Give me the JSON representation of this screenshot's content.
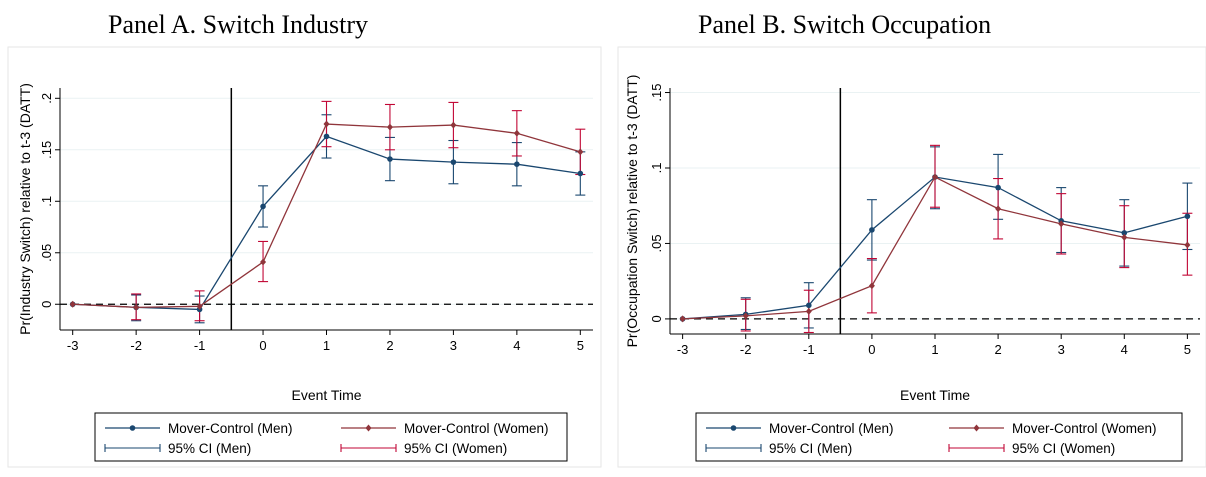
{
  "colors": {
    "men": "#1a476f",
    "women": "#90353b",
    "ci_men": "#1a476f",
    "ci_women": "#c10534",
    "grid": "#eaf2f3",
    "refline": "#000000"
  },
  "chart_data": [
    {
      "type": "line",
      "title": "Panel A. Switch Industry",
      "xlabel": "Event Time",
      "ylabel": "Pr(Industry Switch) relative to t-3 (DATT)",
      "x": [
        -3,
        -2,
        -1,
        0,
        1,
        2,
        3,
        4,
        5
      ],
      "xticks": [
        "-3",
        "-2",
        "-1",
        "0",
        "1",
        "2",
        "3",
        "4",
        "5"
      ],
      "yticks": [
        0,
        0.05,
        0.1,
        0.15,
        0.2
      ],
      "ytick_labels": [
        "0",
        ".05",
        ".1",
        ".15",
        ".2"
      ],
      "xlim": [
        -3.2,
        5.2
      ],
      "ylim": [
        -0.025,
        0.21
      ],
      "vline": -0.5,
      "hline": 0,
      "grid": true,
      "legend_position": "bottom",
      "series": [
        {
          "name": "Mover-Control (Men)",
          "values": [
            0,
            -0.003,
            -0.005,
            0.095,
            0.163,
            0.141,
            0.138,
            0.136,
            0.127
          ]
        },
        {
          "name": "Mover-Control (Women)",
          "values": [
            0,
            -0.003,
            -0.002,
            0.041,
            0.175,
            0.172,
            0.174,
            0.166,
            0.148
          ]
        }
      ],
      "ci": [
        {
          "name": "95% CI (Men)",
          "lower": [
            0,
            -0.016,
            -0.018,
            0.075,
            0.142,
            0.12,
            0.117,
            0.115,
            0.106
          ],
          "upper": [
            0,
            0.009,
            0.008,
            0.115,
            0.184,
            0.162,
            0.159,
            0.157,
            0.148
          ]
        },
        {
          "name": "95% CI (Women)",
          "lower": [
            0,
            -0.015,
            -0.016,
            0.022,
            0.153,
            0.15,
            0.152,
            0.144,
            0.126
          ],
          "upper": [
            0,
            0.01,
            0.013,
            0.061,
            0.197,
            0.194,
            0.196,
            0.188,
            0.17
          ]
        }
      ],
      "legend": [
        "Mover-Control (Men)",
        "Mover-Control (Women)",
        "95% CI (Men)",
        "95% CI (Women)"
      ]
    },
    {
      "type": "line",
      "title": "Panel B. Switch Occupation",
      "xlabel": "Event Time",
      "ylabel": "Pr(Occupation Switch) relative to t-3 (DATT)",
      "x": [
        -3,
        -2,
        -1,
        0,
        1,
        2,
        3,
        4,
        5
      ],
      "xticks": [
        "-3",
        "-2",
        "-1",
        "0",
        "1",
        "2",
        "3",
        "4",
        "5"
      ],
      "yticks": [
        0,
        0.05,
        0.1,
        0.15
      ],
      "ytick_labels": [
        "0",
        ".05",
        ".1",
        ".15"
      ],
      "xlim": [
        -3.2,
        5.2
      ],
      "ylim": [
        -0.01,
        0.153
      ],
      "vline": -0.5,
      "hline": 0,
      "grid": true,
      "legend_position": "bottom",
      "series": [
        {
          "name": "Mover-Control (Men)",
          "values": [
            0,
            0.003,
            0.009,
            0.059,
            0.094,
            0.087,
            0.065,
            0.057,
            0.068
          ]
        },
        {
          "name": "Mover-Control (Women)",
          "values": [
            0,
            0.002,
            0.005,
            0.022,
            0.094,
            0.073,
            0.063,
            0.054,
            0.049
          ]
        }
      ],
      "ci": [
        {
          "name": "95% CI (Men)",
          "lower": [
            0,
            -0.007,
            -0.006,
            0.039,
            0.073,
            0.066,
            0.044,
            0.035,
            0.046
          ],
          "upper": [
            0,
            0.014,
            0.024,
            0.079,
            0.114,
            0.109,
            0.087,
            0.079,
            0.09
          ]
        },
        {
          "name": "95% CI (Women)",
          "lower": [
            0,
            -0.008,
            -0.009,
            0.004,
            0.074,
            0.053,
            0.043,
            0.034,
            0.029
          ],
          "upper": [
            0,
            0.013,
            0.019,
            0.04,
            0.115,
            0.093,
            0.083,
            0.075,
            0.07
          ]
        }
      ],
      "legend": [
        "Mover-Control (Men)",
        "Mover-Control (Women)",
        "95% CI (Men)",
        "95% CI (Women)"
      ]
    }
  ]
}
